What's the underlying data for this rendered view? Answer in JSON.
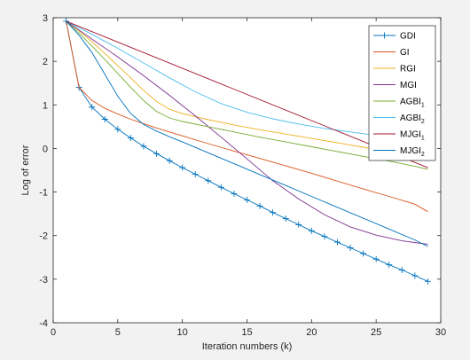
{
  "chart_data": {
    "type": "line",
    "xlabel": "Iteration numbers (k)",
    "ylabel": "Log of error",
    "xlim": [
      0,
      30
    ],
    "ylim": [
      -4,
      3
    ],
    "xticks": [
      0,
      5,
      10,
      15,
      20,
      25,
      30
    ],
    "yticks": [
      -4,
      -3,
      -2,
      -1,
      0,
      1,
      2,
      3
    ],
    "grid": false,
    "legend_position": "top-right",
    "series": [
      {
        "name": "GDI",
        "base": "GDI",
        "sub": "",
        "color": "#0072BD",
        "marker": "+",
        "x": [
          1,
          2,
          3,
          4,
          5,
          6,
          7,
          8,
          9,
          10,
          11,
          12,
          13,
          14,
          15,
          16,
          17,
          18,
          19,
          20,
          21,
          22,
          23,
          24,
          25,
          26,
          27,
          28,
          29
        ],
        "y": [
          2.92,
          1.4,
          0.95,
          0.67,
          0.44,
          0.24,
          0.05,
          -0.12,
          -0.28,
          -0.44,
          -0.59,
          -0.74,
          -0.89,
          -1.04,
          -1.18,
          -1.32,
          -1.47,
          -1.61,
          -1.75,
          -1.89,
          -2.02,
          -2.15,
          -2.28,
          -2.41,
          -2.54,
          -2.67,
          -2.79,
          -2.92,
          -3.05
        ]
      },
      {
        "name": "GI",
        "base": "GI",
        "sub": "",
        "color": "#D95319",
        "marker": "",
        "x": [
          1,
          2,
          3,
          4,
          5,
          6,
          7,
          8,
          9,
          10,
          12,
          14,
          16,
          18,
          20,
          22,
          24,
          26,
          28,
          29
        ],
        "y": [
          2.92,
          1.4,
          1.1,
          0.92,
          0.79,
          0.67,
          0.57,
          0.47,
          0.38,
          0.29,
          0.11,
          -0.06,
          -0.23,
          -0.4,
          -0.57,
          -0.75,
          -0.93,
          -1.1,
          -1.28,
          -1.45
        ]
      },
      {
        "name": "RGI",
        "base": "RGI",
        "sub": "",
        "color": "#EDB120",
        "marker": "",
        "x": [
          1,
          2,
          3,
          4,
          5,
          6,
          7,
          8,
          9,
          10,
          12,
          14,
          16,
          18,
          20,
          22,
          24,
          26,
          28,
          29
        ],
        "y": [
          2.92,
          2.7,
          2.45,
          2.18,
          1.9,
          1.62,
          1.33,
          1.08,
          0.9,
          0.8,
          0.66,
          0.54,
          0.43,
          0.33,
          0.23,
          0.13,
          0.03,
          -0.07,
          -0.17,
          -0.25
        ]
      },
      {
        "name": "MGI",
        "base": "MGI",
        "sub": "",
        "color": "#7E2F8E",
        "marker": "",
        "x": [
          1,
          3,
          5,
          7,
          9,
          11,
          13,
          15,
          17,
          19,
          21,
          23,
          25,
          27,
          29
        ],
        "y": [
          2.92,
          2.51,
          2.1,
          1.67,
          1.22,
          0.75,
          0.26,
          -0.24,
          -0.74,
          -1.16,
          -1.52,
          -1.8,
          -1.99,
          -2.12,
          -2.2
        ]
      },
      {
        "name": "AGBI1",
        "base": "AGBI",
        "sub": "1",
        "color": "#77AC30",
        "marker": "",
        "x": [
          1,
          2,
          3,
          4,
          5,
          6,
          7,
          8,
          9,
          10,
          12,
          14,
          16,
          18,
          20,
          22,
          24,
          26,
          28,
          29
        ],
        "y": [
          2.92,
          2.65,
          2.35,
          2.04,
          1.72,
          1.4,
          1.1,
          0.85,
          0.7,
          0.62,
          0.5,
          0.38,
          0.26,
          0.15,
          0.04,
          -0.07,
          -0.18,
          -0.29,
          -0.41,
          -0.48
        ]
      },
      {
        "name": "AGBI2",
        "base": "AGBI",
        "sub": "2",
        "color": "#4DBEEE",
        "marker": "",
        "x": [
          1,
          3,
          5,
          7,
          9,
          11,
          13,
          15,
          17,
          19,
          21,
          23,
          25,
          27,
          29
        ],
        "y": [
          2.92,
          2.62,
          2.3,
          1.96,
          1.62,
          1.3,
          1.03,
          0.83,
          0.68,
          0.56,
          0.46,
          0.38,
          0.3,
          0.23,
          0.14
        ]
      },
      {
        "name": "MJGI1",
        "base": "MJGI",
        "sub": "1",
        "color": "#A2142F",
        "marker": "",
        "x": [
          1,
          29
        ],
        "y": [
          2.92,
          -0.44
        ]
      },
      {
        "name": "MJGI2",
        "base": "MJGI",
        "sub": "2",
        "color": "#0072BD",
        "marker": "",
        "x": [
          1,
          2,
          3,
          4,
          5,
          6,
          7,
          8,
          9,
          10,
          12,
          14,
          16,
          18,
          20,
          22,
          24,
          26,
          28,
          29
        ],
        "y": [
          2.92,
          2.6,
          2.2,
          1.7,
          1.2,
          0.8,
          0.55,
          0.4,
          0.27,
          0.15,
          -0.1,
          -0.35,
          -0.6,
          -0.85,
          -1.1,
          -1.35,
          -1.6,
          -1.85,
          -2.1,
          -2.25
        ]
      }
    ]
  }
}
